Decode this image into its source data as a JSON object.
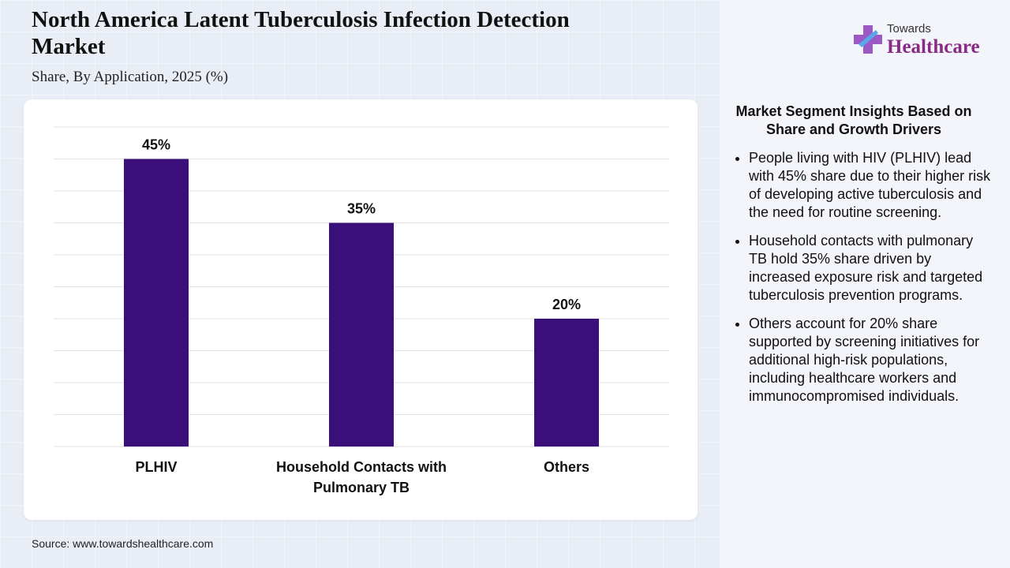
{
  "header": {
    "title": "North America Latent Tuberculosis Infection Detection Market",
    "subtitle": "Share, By Application, 2025 (%)"
  },
  "logo": {
    "top_text": "Towards",
    "main_text": "Healthcare",
    "icon": "medical-cross-icon"
  },
  "chart_data": {
    "type": "bar",
    "categories": [
      "PLHIV",
      "Household Contacts with Pulmonary TB",
      "Others"
    ],
    "category_lines": [
      [
        "PLHIV"
      ],
      [
        "Household Contacts with",
        "Pulmonary TB"
      ],
      [
        "Others"
      ]
    ],
    "values": [
      45,
      35,
      20
    ],
    "data_labels": [
      "45%",
      "35%",
      "20%"
    ],
    "ylim": [
      0,
      50
    ],
    "y_gridline_step": 5,
    "grid": true,
    "y_axis_visible": false,
    "bar_color": "#3b0f7a"
  },
  "insights": {
    "title": "Market Segment Insights Based on Share and Growth Drivers",
    "bullets": [
      "People living with HIV (PLHIV) lead with 45% share due to their higher risk of developing active tuberculosis and the need for routine screening.",
      "Household contacts with pulmonary TB hold 35% share driven by increased exposure risk and targeted tuberculosis prevention programs.",
      "Others account for 20% share supported by screening initiatives for additional high-risk populations, including healthcare workers and immunocompromised individuals."
    ]
  },
  "footer": {
    "source": "Source: www.towardshealthcare.com"
  },
  "colors": {
    "bar": "#3b0f7a",
    "logo_accent": "#8a2a86",
    "logo_cross_light": "#9b59c6"
  }
}
